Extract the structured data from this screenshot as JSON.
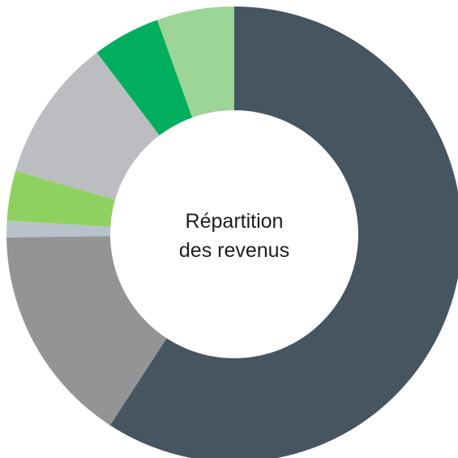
{
  "chart_data": {
    "type": "pie",
    "donut": true,
    "center_title": [
      "Répartition",
      "des revenus"
    ],
    "start_angle_deg": 0,
    "direction": "clockwise",
    "legend": "none",
    "slices": [
      {
        "value": 60.3,
        "color": "#465560"
      },
      {
        "value": 15.9,
        "color": "#929496"
      },
      {
        "value": 1.2,
        "color": "#b7c2ca"
      },
      {
        "value": 3.6,
        "color": "#8fd160"
      },
      {
        "value": 10.4,
        "color": "#bbbdc0"
      },
      {
        "value": 4.9,
        "color": "#00ae5e"
      },
      {
        "value": 5.6,
        "color": "#9dd497"
      }
    ]
  }
}
